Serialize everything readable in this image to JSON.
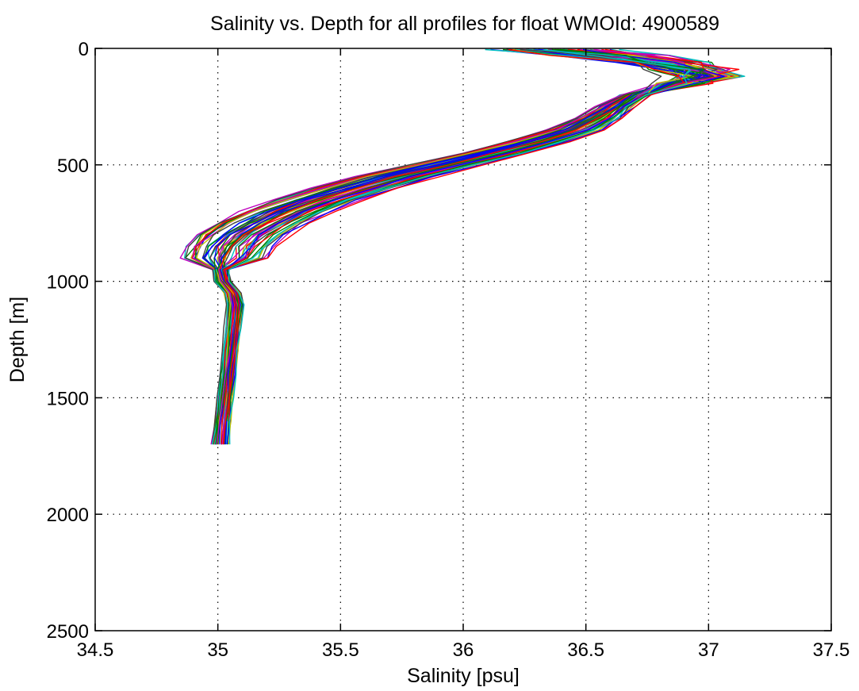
{
  "chart_data": {
    "type": "line",
    "title": "Salinity vs. Depth for all profiles for float WMOId: 4900589",
    "xlabel": "Salinity [psu]",
    "ylabel": "Depth [m]",
    "xlim": [
      34.5,
      37.5
    ],
    "ylim": [
      0,
      2500
    ],
    "y_reversed": true,
    "grid": true,
    "legend": "none",
    "x_ticks": [
      "34.5",
      "35",
      "35.5",
      "36",
      "36.5",
      "37",
      "37.5"
    ],
    "y_ticks": [
      "0",
      "500",
      "1000",
      "1500",
      "2000",
      "2500"
    ],
    "profile_count": 60,
    "colors": [
      "#0000ff",
      "#008000",
      "#ff0000",
      "#00bfbf",
      "#bf00bf",
      "#bfbf00",
      "#404040"
    ],
    "representative_profile": {
      "depth": [
        5,
        30,
        60,
        90,
        120,
        150,
        200,
        250,
        300,
        350,
        400,
        450,
        500,
        550,
        600,
        650,
        700,
        750,
        800,
        850,
        900,
        950,
        1000,
        1050,
        1100,
        1200,
        1300,
        1400,
        1500,
        1600,
        1700,
        1750
      ],
      "salinity": [
        36.35,
        36.6,
        36.8,
        36.92,
        36.98,
        36.9,
        36.7,
        36.62,
        36.55,
        36.45,
        36.3,
        36.12,
        35.92,
        35.72,
        35.55,
        35.4,
        35.27,
        35.17,
        35.09,
        35.04,
        35.02,
        35.01,
        35.02,
        35.06,
        35.07,
        35.06,
        35.05,
        35.04,
        35.03,
        35.02,
        35.01,
        35.0
      ]
    },
    "spread": {
      "min_salinity": 34.92,
      "max_salinity": 37.18,
      "max_depth": 1750
    }
  }
}
